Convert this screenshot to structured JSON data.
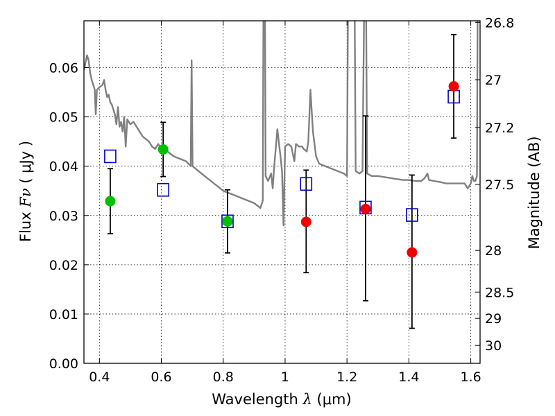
{
  "chart_data": {
    "type": "scatter",
    "xlabel": {
      "text": "Wavelength ",
      "symbol": "λ",
      "unit": " (μm)"
    },
    "ylabel": {
      "text": "Flux ",
      "symbol": "Fν",
      "unit": " ( μJy )"
    },
    "y2label": "Magnitude (AB)",
    "xlim": [
      0.35,
      1.63
    ],
    "ylim": [
      0.0,
      0.0695
    ],
    "x_ticks": [
      "0.4",
      "0.6",
      "0.8",
      "1",
      "1.2",
      "1.4",
      "1.6"
    ],
    "x_tick_values": [
      0.4,
      0.6,
      0.8,
      1.0,
      1.2,
      1.4,
      1.6
    ],
    "y_ticks": [
      "0.00",
      "0.01",
      "0.02",
      "0.03",
      "0.04",
      "0.05",
      "0.06"
    ],
    "y_tick_values": [
      0.0,
      0.01,
      0.02,
      0.03,
      0.04,
      0.05,
      0.06
    ],
    "y2_ticks": [
      "26.8",
      "27",
      "27.2",
      "27.5",
      "28",
      "28.5",
      "29",
      "30"
    ],
    "y2_tick_mags": [
      26.8,
      27.0,
      27.2,
      27.5,
      28.0,
      28.5,
      29.0,
      30.0
    ],
    "grid": true,
    "colors": {
      "model": "#808080",
      "observed_green": "#00c000",
      "observed_red": "#ee0000",
      "model_photometry": "#0000cc",
      "errorbar": "#000000"
    },
    "series": [
      {
        "style": "green-circle",
        "points": [
          {
            "x": 0.435,
            "y": 0.0329,
            "err_low": 0.0263,
            "err_high": 0.0395
          },
          {
            "x": 0.606,
            "y": 0.0434,
            "err_low": 0.0379,
            "err_high": 0.0489
          },
          {
            "x": 0.814,
            "y": 0.0288,
            "err_low": 0.0224,
            "err_high": 0.0352
          }
        ]
      },
      {
        "style": "red-circle",
        "points": [
          {
            "x": 1.068,
            "y": 0.0287,
            "err_low": 0.0184,
            "err_high": 0.0392
          },
          {
            "x": 1.26,
            "y": 0.0313,
            "err_low": 0.0127,
            "err_high": 0.0502
          },
          {
            "x": 1.41,
            "y": 0.0225,
            "err_low": 0.0071,
            "err_high": 0.0382
          },
          {
            "x": 1.545,
            "y": 0.0562,
            "err_low": 0.0457,
            "err_high": 0.0667
          }
        ]
      },
      {
        "style": "blue-square",
        "points": [
          {
            "x": 0.435,
            "y": 0.042
          },
          {
            "x": 0.606,
            "y": 0.0352
          },
          {
            "x": 0.814,
            "y": 0.0288
          },
          {
            "x": 1.068,
            "y": 0.0364
          },
          {
            "x": 1.26,
            "y": 0.0316
          },
          {
            "x": 1.41,
            "y": 0.0301
          },
          {
            "x": 1.545,
            "y": 0.0541
          }
        ]
      },
      {
        "style": "gray-line",
        "points": [
          [
            0.35,
            0.0595
          ],
          [
            0.36,
            0.0625
          ],
          [
            0.365,
            0.0615
          ],
          [
            0.37,
            0.059
          ],
          [
            0.375,
            0.0575
          ],
          [
            0.38,
            0.0565
          ],
          [
            0.385,
            0.0555
          ],
          [
            0.388,
            0.0505
          ],
          [
            0.392,
            0.0555
          ],
          [
            0.4,
            0.056
          ],
          [
            0.41,
            0.0565
          ],
          [
            0.415,
            0.0575
          ],
          [
            0.42,
            0.0555
          ],
          [
            0.425,
            0.054
          ],
          [
            0.43,
            0.0545
          ],
          [
            0.435,
            0.053
          ],
          [
            0.44,
            0.0525
          ],
          [
            0.445,
            0.0515
          ],
          [
            0.45,
            0.0505
          ],
          [
            0.455,
            0.0485
          ],
          [
            0.46,
            0.052
          ],
          [
            0.465,
            0.048
          ],
          [
            0.47,
            0.049
          ],
          [
            0.475,
            0.047
          ],
          [
            0.48,
            0.05
          ],
          [
            0.485,
            0.044
          ],
          [
            0.49,
            0.0495
          ],
          [
            0.5,
            0.0485
          ],
          [
            0.51,
            0.049
          ],
          [
            0.52,
            0.048
          ],
          [
            0.53,
            0.047
          ],
          [
            0.54,
            0.046
          ],
          [
            0.55,
            0.0455
          ],
          [
            0.56,
            0.045
          ],
          [
            0.57,
            0.044
          ],
          [
            0.58,
            0.0435
          ],
          [
            0.59,
            0.0445
          ],
          [
            0.6,
            0.0435
          ],
          [
            0.62,
            0.043
          ],
          [
            0.64,
            0.042
          ],
          [
            0.66,
            0.0415
          ],
          [
            0.68,
            0.041
          ],
          [
            0.695,
            0.04
          ],
          [
            0.698,
            0.0615
          ],
          [
            0.701,
            0.04
          ],
          [
            0.72,
            0.039
          ],
          [
            0.75,
            0.0375
          ],
          [
            0.78,
            0.036
          ],
          [
            0.8,
            0.035
          ],
          [
            0.82,
            0.0345
          ],
          [
            0.84,
            0.034
          ],
          [
            0.86,
            0.0335
          ],
          [
            0.88,
            0.033
          ],
          [
            0.9,
            0.0325
          ],
          [
            0.91,
            0.032
          ],
          [
            0.92,
            0.0315
          ],
          [
            0.928,
            0.033
          ],
          [
            0.93,
            0.07
          ],
          [
            0.935,
            0.07
          ],
          [
            0.937,
            0.038
          ],
          [
            0.945,
            0.037
          ],
          [
            0.955,
            0.0385
          ],
          [
            0.96,
            0.0355
          ],
          [
            0.965,
            0.04
          ],
          [
            0.975,
            0.0475
          ],
          [
            0.985,
            0.042
          ],
          [
            0.99,
            0.039
          ],
          [
            0.995,
            0.028
          ],
          [
            1.0,
            0.044
          ],
          [
            1.01,
            0.0445
          ],
          [
            1.02,
            0.044
          ],
          [
            1.03,
            0.041
          ],
          [
            1.035,
            0.0445
          ],
          [
            1.045,
            0.044
          ],
          [
            1.055,
            0.044
          ],
          [
            1.06,
            0.0435
          ],
          [
            1.07,
            0.043
          ],
          [
            1.075,
            0.045
          ],
          [
            1.082,
            0.0555
          ],
          [
            1.09,
            0.047
          ],
          [
            1.1,
            0.042
          ],
          [
            1.11,
            0.0405
          ],
          [
            1.13,
            0.04
          ],
          [
            1.15,
            0.0395
          ],
          [
            1.17,
            0.039
          ],
          [
            1.19,
            0.0385
          ],
          [
            1.2,
            0.038
          ],
          [
            1.203,
            0.07
          ],
          [
            1.225,
            0.07
          ],
          [
            1.228,
            0.039
          ],
          [
            1.24,
            0.0385
          ],
          [
            1.25,
            0.039
          ],
          [
            1.255,
            0.07
          ],
          [
            1.262,
            0.07
          ],
          [
            1.265,
            0.0385
          ],
          [
            1.28,
            0.038
          ],
          [
            1.3,
            0.038
          ],
          [
            1.32,
            0.0378
          ],
          [
            1.35,
            0.0375
          ],
          [
            1.38,
            0.0372
          ],
          [
            1.4,
            0.0372
          ],
          [
            1.42,
            0.037
          ],
          [
            1.44,
            0.037
          ],
          [
            1.45,
            0.0375
          ],
          [
            1.46,
            0.0385
          ],
          [
            1.465,
            0.0372
          ],
          [
            1.48,
            0.037
          ],
          [
            1.5,
            0.0368
          ],
          [
            1.52,
            0.0365
          ],
          [
            1.54,
            0.0365
          ],
          [
            1.56,
            0.0365
          ],
          [
            1.58,
            0.0365
          ],
          [
            1.59,
            0.0355
          ],
          [
            1.6,
            0.0365
          ],
          [
            1.605,
            0.038
          ],
          [
            1.61,
            0.037
          ],
          [
            1.615,
            0.037
          ],
          [
            1.62,
            0.038
          ],
          [
            1.622,
            0.07
          ]
        ]
      }
    ]
  }
}
